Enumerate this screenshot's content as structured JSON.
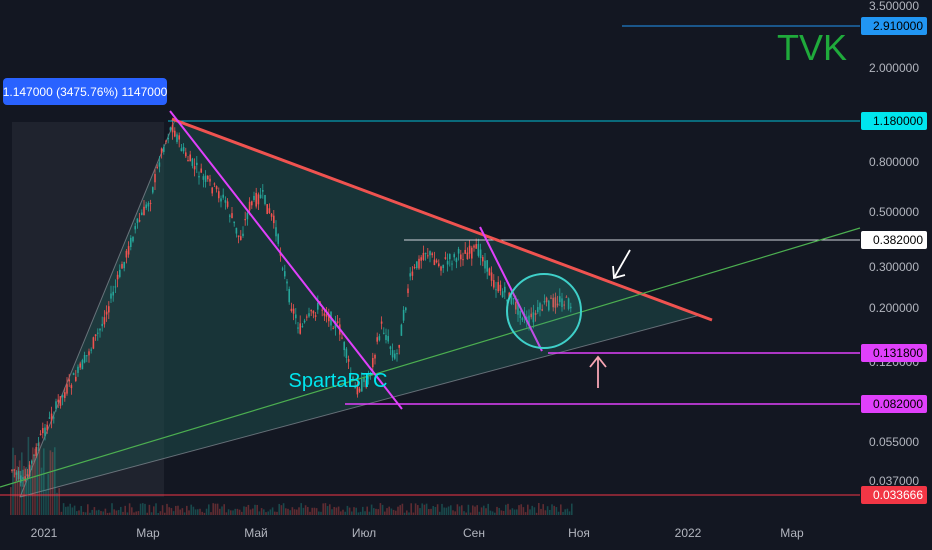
{
  "chart_data": {
    "type": "candlestick",
    "title": "TVK",
    "watermark": "SpartaBTC",
    "scale": "log",
    "grid": false,
    "x_ticks": [
      "2021",
      "Мар",
      "Май",
      "Июл",
      "Сен",
      "Ноя",
      "2022",
      "Мар"
    ],
    "y_ticks": [
      "3.500000",
      "2.000000",
      "0.800000",
      "0.500000",
      "0.300000",
      "0.200000",
      "0.120000",
      "0.055000",
      "0.037000"
    ],
    "y_range": [
      0.03,
      3.6
    ],
    "measure_label": "1.147000 (3475.76%) 1147000",
    "price_badges": [
      {
        "value": "2.910000",
        "price": 2.91,
        "color": "#2196f3",
        "text_color": "#000000"
      },
      {
        "value": "1.180000",
        "price": 1.18,
        "color": "#00e5ee",
        "text_color": "#000000"
      },
      {
        "value": "0.382000",
        "price": 0.382,
        "color": "#ffffff",
        "text_color": "#000000"
      },
      {
        "value": "0.131800",
        "price": 0.1318,
        "color": "#e040fb",
        "text_color": "#000000"
      },
      {
        "value": "0.082000",
        "price": 0.082,
        "color": "#e040fb",
        "text_color": "#000000"
      },
      {
        "value": "0.033666",
        "price": 0.033666,
        "color": "#f23645",
        "text_color": "#ffffff"
      }
    ],
    "colors": {
      "background": "#131722",
      "up": "#26a69a",
      "down": "#ef5350",
      "triangle_fill": "#1e4d4a",
      "resistance": "#ef5350",
      "support": "#4caf50",
      "downtrend": "#e040fb",
      "title": "#1faa3b",
      "watermark": "#00e5ee"
    }
  }
}
